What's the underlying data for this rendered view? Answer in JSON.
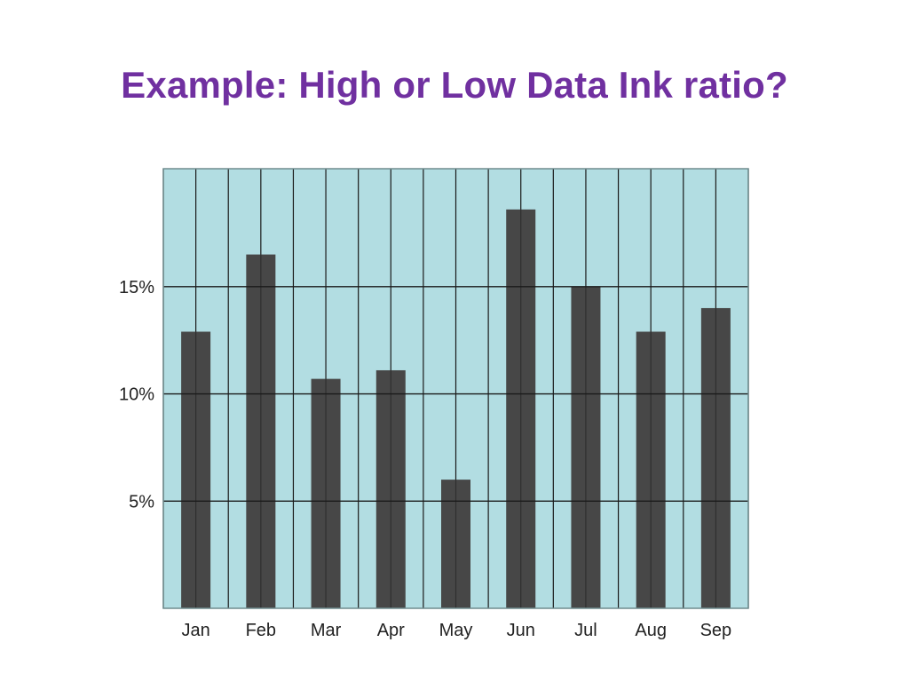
{
  "slide": {
    "title": "Example: High or Low Data Ink ratio?"
  },
  "colors": {
    "title": "#7030a0",
    "plot_background": "#b2dde2",
    "bar_fill": "#474747",
    "grid_line": "#1a1a1a",
    "frame": "#6f8b8e"
  },
  "chart_data": {
    "type": "bar",
    "categories": [
      "Jan",
      "Feb",
      "Mar",
      "Apr",
      "May",
      "Jun",
      "Jul",
      "Aug",
      "Sep"
    ],
    "values": [
      12.9,
      16.5,
      10.7,
      11.1,
      6.0,
      18.6,
      15.0,
      12.9,
      14.0
    ],
    "value_unit": "%",
    "ylim": [
      0,
      20.5
    ],
    "y_ticks": [
      5,
      10,
      15
    ],
    "y_tick_labels": [
      "5%",
      "10%",
      "15%"
    ],
    "grid": true,
    "vertical_gridlines": true,
    "legend": "none"
  }
}
